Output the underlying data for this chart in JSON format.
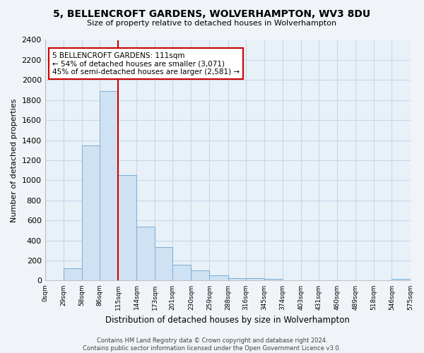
{
  "title": "5, BELLENCROFT GARDENS, WOLVERHAMPTON, WV3 8DU",
  "subtitle": "Size of property relative to detached houses in Wolverhampton",
  "xlabel": "Distribution of detached houses by size in Wolverhampton",
  "ylabel": "Number of detached properties",
  "bar_edges": [
    0,
    29,
    58,
    86,
    115,
    144,
    173,
    201,
    230,
    259,
    288,
    316,
    345,
    374,
    403,
    431,
    460,
    489,
    518,
    546,
    575
  ],
  "bar_heights": [
    0,
    120,
    1350,
    1890,
    1050,
    540,
    335,
    160,
    100,
    55,
    25,
    25,
    15,
    5,
    5,
    0,
    5,
    0,
    5,
    20
  ],
  "bar_color": "#cfe2f3",
  "bar_edge_color": "#7bafd4",
  "vline_x": 115,
  "vline_color": "#cc0000",
  "annotation_title": "5 BELLENCROFT GARDENS: 111sqm",
  "annotation_line1": "← 54% of detached houses are smaller (3,071)",
  "annotation_line2": "45% of semi-detached houses are larger (2,581) →",
  "ylim": [
    0,
    2400
  ],
  "yticks": [
    0,
    200,
    400,
    600,
    800,
    1000,
    1200,
    1400,
    1600,
    1800,
    2000,
    2200,
    2400
  ],
  "xtick_labels": [
    "0sqm",
    "29sqm",
    "58sqm",
    "86sqm",
    "115sqm",
    "144sqm",
    "173sqm",
    "201sqm",
    "230sqm",
    "259sqm",
    "288sqm",
    "316sqm",
    "345sqm",
    "374sqm",
    "403sqm",
    "431sqm",
    "460sqm",
    "489sqm",
    "518sqm",
    "546sqm",
    "575sqm"
  ],
  "grid_color": "#c8d8e8",
  "plot_bg_color": "#e8f0f8",
  "fig_bg_color": "#f0f4f8",
  "footer_line1": "Contains HM Land Registry data © Crown copyright and database right 2024.",
  "footer_line2": "Contains public sector information licensed under the Open Government Licence v3.0."
}
